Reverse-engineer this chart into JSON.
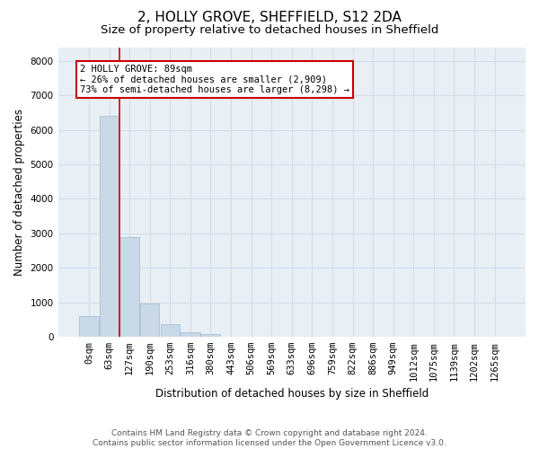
{
  "title": "2, HOLLY GROVE, SHEFFIELD, S12 2DA",
  "subtitle": "Size of property relative to detached houses in Sheffield",
  "xlabel": "Distribution of detached houses by size in Sheffield",
  "ylabel": "Number of detached properties",
  "footer_line1": "Contains HM Land Registry data © Crown copyright and database right 2024.",
  "footer_line2": "Contains public sector information licensed under the Open Government Licence v3.0.",
  "bar_labels": [
    "0sqm",
    "63sqm",
    "127sqm",
    "190sqm",
    "253sqm",
    "316sqm",
    "380sqm",
    "443sqm",
    "506sqm",
    "569sqm",
    "633sqm",
    "696sqm",
    "759sqm",
    "822sqm",
    "886sqm",
    "949sqm",
    "1012sqm",
    "1075sqm",
    "1139sqm",
    "1202sqm",
    "1265sqm"
  ],
  "bar_values": [
    600,
    6400,
    2900,
    960,
    360,
    140,
    80,
    0,
    0,
    0,
    0,
    0,
    0,
    0,
    0,
    0,
    0,
    0,
    0,
    0,
    0
  ],
  "bar_color": "#c9d9e8",
  "bar_edge_color": "#a8c0d5",
  "property_line_color": "#cc0000",
  "property_line_x": 1.5,
  "annotation_text": "2 HOLLY GROVE: 89sqm\n← 26% of detached houses are smaller (2,909)\n73% of semi-detached houses are larger (8,298) →",
  "annotation_box_facecolor": "#ffffff",
  "annotation_box_edgecolor": "#cc0000",
  "ylim": [
    0,
    8400
  ],
  "yticks": [
    0,
    1000,
    2000,
    3000,
    4000,
    5000,
    6000,
    7000,
    8000
  ],
  "grid_color": "#d0dce8",
  "bg_color": "#e8eff5",
  "title_fontsize": 11,
  "subtitle_fontsize": 9.5,
  "axis_label_fontsize": 8.5,
  "tick_fontsize": 7.5,
  "annotation_fontsize": 7.5,
  "footer_fontsize": 6.5
}
